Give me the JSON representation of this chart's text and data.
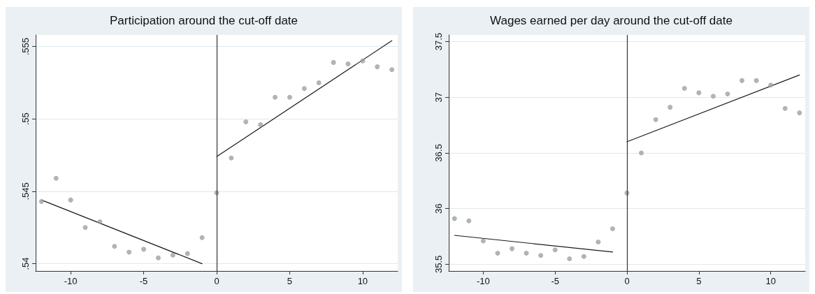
{
  "chart_data": [
    {
      "type": "scatter",
      "title": "Participation around the cut-off date",
      "marker": "circle",
      "grid": "y",
      "xlim": [
        -12.4,
        12.4
      ],
      "xticks": [
        -10,
        -5,
        0,
        5,
        10
      ],
      "ylim": [
        0.5395,
        0.5558
      ],
      "yticks": [
        {
          "value": 0.54,
          "label": ".54"
        },
        {
          "value": 0.545,
          "label": ".545"
        },
        {
          "value": 0.55,
          "label": ".55"
        },
        {
          "value": 0.555,
          "label": ".555"
        }
      ],
      "ref_lines": [
        {
          "axis": "x",
          "value": 0,
          "color": "#333333"
        }
      ],
      "series": [
        {
          "color": "#a0a0a0",
          "x": [
            -12,
            -11,
            -10,
            -9,
            -8,
            -7,
            -6,
            -5,
            -4,
            -3,
            -2,
            -1,
            0,
            1,
            2,
            3,
            4,
            5,
            6,
            7,
            8,
            9,
            10,
            11,
            12
          ],
          "values": [
            0.5443,
            0.5459,
            0.5444,
            0.5425,
            0.5429,
            0.5412,
            0.5408,
            0.541,
            0.5404,
            0.5406,
            0.5407,
            0.5418,
            0.5449,
            0.5473,
            0.5498,
            0.5496,
            0.5515,
            0.5515,
            0.5521,
            0.5525,
            0.5539,
            0.5538,
            0.554,
            0.5536,
            0.5534
          ]
        },
        {
          "type": "line",
          "color": "#1a1a1a",
          "marker": "none",
          "x": [
            -12,
            -1
          ],
          "values": [
            0.5444,
            0.54
          ]
        },
        {
          "type": "line",
          "color": "#1a1a1a",
          "marker": "none",
          "x": [
            0,
            12
          ],
          "values": [
            0.5474,
            0.5554
          ]
        }
      ]
    },
    {
      "type": "scatter",
      "title": "Wages earned per day around the cut-off date",
      "marker": "circle",
      "grid": "y",
      "xlim": [
        -12.4,
        12.4
      ],
      "xticks": [
        -10,
        -5,
        0,
        5,
        10
      ],
      "ylim": [
        35.44,
        37.56
      ],
      "yticks": [
        35.5,
        36,
        36.5,
        37,
        37.5
      ],
      "ref_lines": [
        {
          "axis": "x",
          "value": 0,
          "color": "#333333"
        }
      ],
      "series": [
        {
          "color": "#a0a0a0",
          "x": [
            -12,
            -11,
            -10,
            -9,
            -8,
            -7,
            -6,
            -5,
            -4,
            -3,
            -2,
            -1,
            0,
            1,
            2,
            3,
            4,
            5,
            6,
            7,
            8,
            9,
            10,
            11,
            12
          ],
          "values": [
            35.91,
            35.89,
            35.71,
            35.6,
            35.64,
            35.6,
            35.58,
            35.63,
            35.55,
            35.57,
            35.7,
            35.82,
            36.14,
            36.5,
            36.8,
            36.91,
            37.08,
            37.04,
            37.01,
            37.03,
            37.15,
            37.15,
            37.11,
            36.9,
            36.86
          ]
        },
        {
          "type": "line",
          "color": "#1a1a1a",
          "marker": "none",
          "x": [
            -12,
            -1
          ],
          "values": [
            35.76,
            35.61
          ]
        },
        {
          "type": "line",
          "color": "#1a1a1a",
          "marker": "none",
          "x": [
            0,
            12
          ],
          "values": [
            36.6,
            37.2
          ]
        }
      ]
    }
  ]
}
